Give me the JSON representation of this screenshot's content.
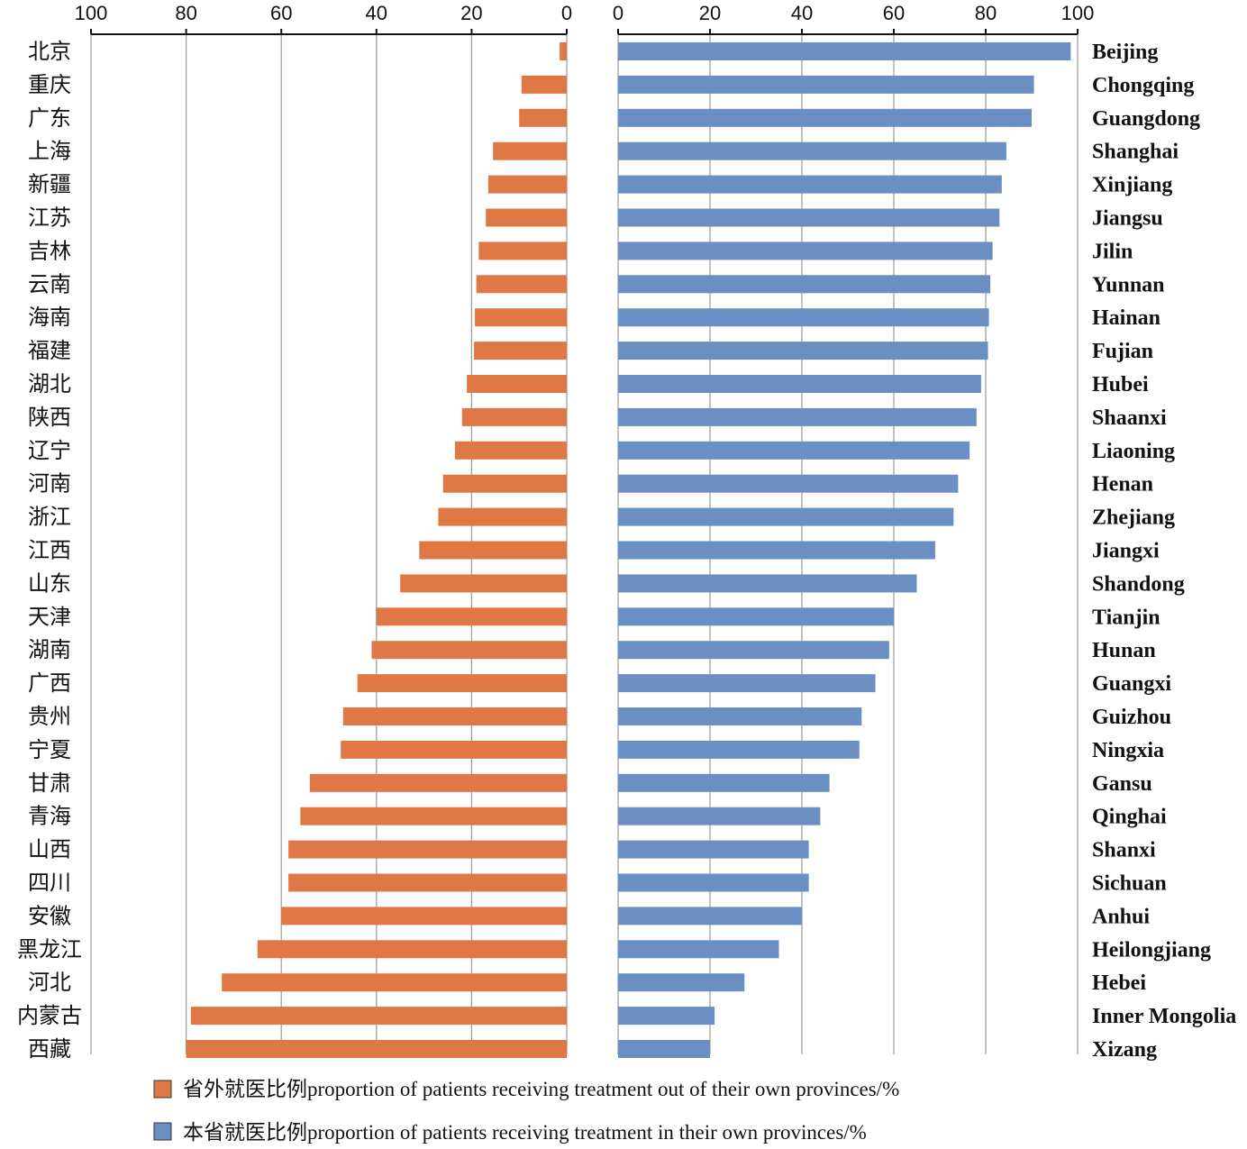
{
  "chart_data": {
    "type": "bar",
    "orientation": "horizontal",
    "layout": "mirrored",
    "categories_cn": [
      "北京",
      "重庆",
      "广东",
      "上海",
      "新疆",
      "江苏",
      "吉林",
      "云南",
      "海南",
      "福建",
      "湖北",
      "陕西",
      "辽宁",
      "河南",
      "浙江",
      "江西",
      "山东",
      "天津",
      "湖南",
      "广西",
      "贵州",
      "宁夏",
      "甘肃",
      "青海",
      "山西",
      "四川",
      "安徽",
      "黑龙江",
      "河北",
      "内蒙古",
      "西藏"
    ],
    "categories_en": [
      "Beijing",
      "Chongqing",
      "Guangdong",
      "Shanghai",
      "Xinjiang",
      "Jiangsu",
      "Jilin",
      "Yunnan",
      "Hainan",
      "Fujian",
      "Hubei",
      "Shaanxi",
      "Liaoning",
      "Henan",
      "Zhejiang",
      "Jiangxi",
      "Shandong",
      "Tianjin",
      "Hunan",
      "Guangxi",
      "Guizhou",
      "Ningxia",
      "Gansu",
      "Qinghai",
      "Shanxi",
      "Sichuan",
      "Anhui",
      "Heilongjiang",
      "Hebei",
      "Inner Mongolia",
      "Xizang"
    ],
    "series": [
      {
        "name": "省外就医比例proportion of patients receiving treatment out of their own provinces/%",
        "color": "#e07845",
        "side": "left",
        "values": [
          1.5,
          9.5,
          10,
          15.5,
          16.5,
          17,
          18.5,
          19,
          19.3,
          19.5,
          21,
          22,
          23.5,
          26,
          27,
          31,
          35,
          40,
          41,
          44,
          47,
          47.5,
          54,
          56,
          58.5,
          58.5,
          60,
          65,
          72.5,
          79,
          80
        ]
      },
      {
        "name": "本省就医比例proportion of patients receiving treatment in their own provinces/%",
        "color": "#6b8fc2",
        "side": "right",
        "values": [
          98.5,
          90.5,
          90,
          84.5,
          83.5,
          83,
          81.5,
          81,
          80.7,
          80.5,
          79,
          78,
          76.5,
          74,
          73,
          69,
          65,
          60,
          59,
          56,
          53,
          52.5,
          46,
          44,
          41.5,
          41.5,
          40,
          35,
          27.5,
          21,
          20
        ]
      }
    ],
    "left_axis": {
      "ticks": [
        "100",
        "80",
        "60",
        "40",
        "20",
        "0"
      ],
      "range": [
        100,
        0
      ]
    },
    "right_axis": {
      "ticks": [
        "0",
        "20",
        "40",
        "60",
        "80",
        "100"
      ],
      "range": [
        0,
        100
      ]
    },
    "grid": true,
    "legend_position": "bottom"
  }
}
